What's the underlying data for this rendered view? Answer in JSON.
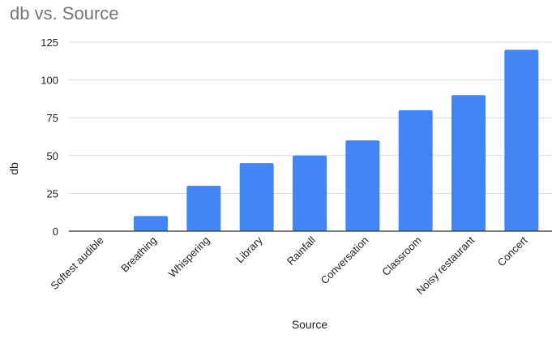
{
  "chart_data": {
    "type": "bar",
    "title": "db vs. Source",
    "xlabel": "Source",
    "ylabel": "db",
    "categories": [
      "Softest audible",
      "Breathing",
      "Whispering",
      "Library",
      "Rainfall",
      "Conversation",
      "Classroom",
      "Noisy restaurant",
      "Concert"
    ],
    "values": [
      0,
      10,
      30,
      45,
      50,
      60,
      80,
      90,
      120
    ],
    "yticks": [
      "0",
      "25",
      "50",
      "75",
      "100",
      "125"
    ],
    "ylim": [
      0,
      125
    ],
    "grid": true,
    "legend": "none",
    "bar_color": "#4285f4"
  }
}
